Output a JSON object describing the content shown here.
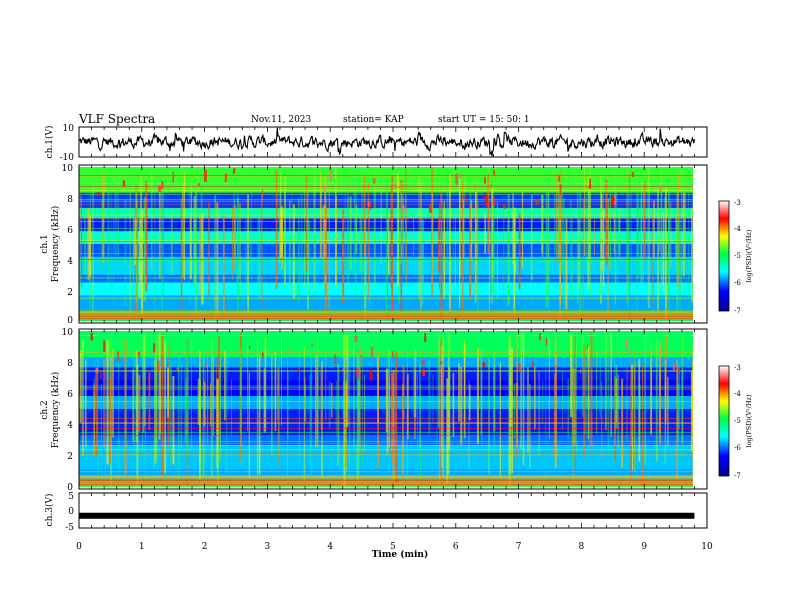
{
  "header": {
    "title": "VLF Spectra",
    "date": "Nov.11, 2023",
    "station": "station= KAP",
    "start": "start  UT =   15: 50: 1"
  },
  "chart_data": [
    {
      "type": "line",
      "name_panel": "ch1-waveform",
      "ylabel": "ch.1(V)",
      "ylim": [
        -10,
        10
      ],
      "yticks": [
        "10",
        "-10"
      ],
      "xlim": [
        0,
        10
      ]
    },
    {
      "type": "heatmap",
      "name_panel": "ch1-spectrogram",
      "ylabel_top": "ch.1",
      "ylabel": "Frequency (kHz)",
      "ylim": [
        0,
        10
      ],
      "yticks": [
        "0",
        "2",
        "4",
        "6",
        "8",
        "10"
      ],
      "xlim": [
        0,
        9.8
      ],
      "colorbar": {
        "label": "log(PSD)(V²/Hz)",
        "range": [
          -7,
          -3
        ],
        "ticks": [
          "-3",
          "-4",
          "-5",
          "-6",
          "-7"
        ]
      }
    },
    {
      "type": "heatmap",
      "name_panel": "ch2-spectrogram",
      "ylabel_top": "ch.2",
      "ylabel": "Frequency (kHz)",
      "ylim": [
        0,
        10
      ],
      "yticks": [
        "0",
        "2",
        "4",
        "6",
        "8",
        "10"
      ],
      "xlim": [
        0,
        9.8
      ],
      "colorbar": {
        "label": "log(PSD)(V²/Hz)",
        "range": [
          -7,
          -3
        ],
        "ticks": [
          "-3",
          "-4",
          "-5",
          "-6",
          "-7"
        ]
      }
    },
    {
      "type": "line",
      "name_panel": "ch3-waveform",
      "ylabel": "ch.3(V)",
      "ylim": [
        -5,
        5
      ],
      "yticks": [
        "5",
        "0",
        "-5"
      ],
      "xlim": [
        0,
        10
      ],
      "x": [
        0,
        9.8
      ],
      "y": [
        -1.5,
        -1.5
      ],
      "xlabel": "Time  (min)",
      "xticks": [
        "0",
        "1",
        "2",
        "3",
        "4",
        "5",
        "6",
        "7",
        "8",
        "9",
        "10"
      ]
    }
  ]
}
